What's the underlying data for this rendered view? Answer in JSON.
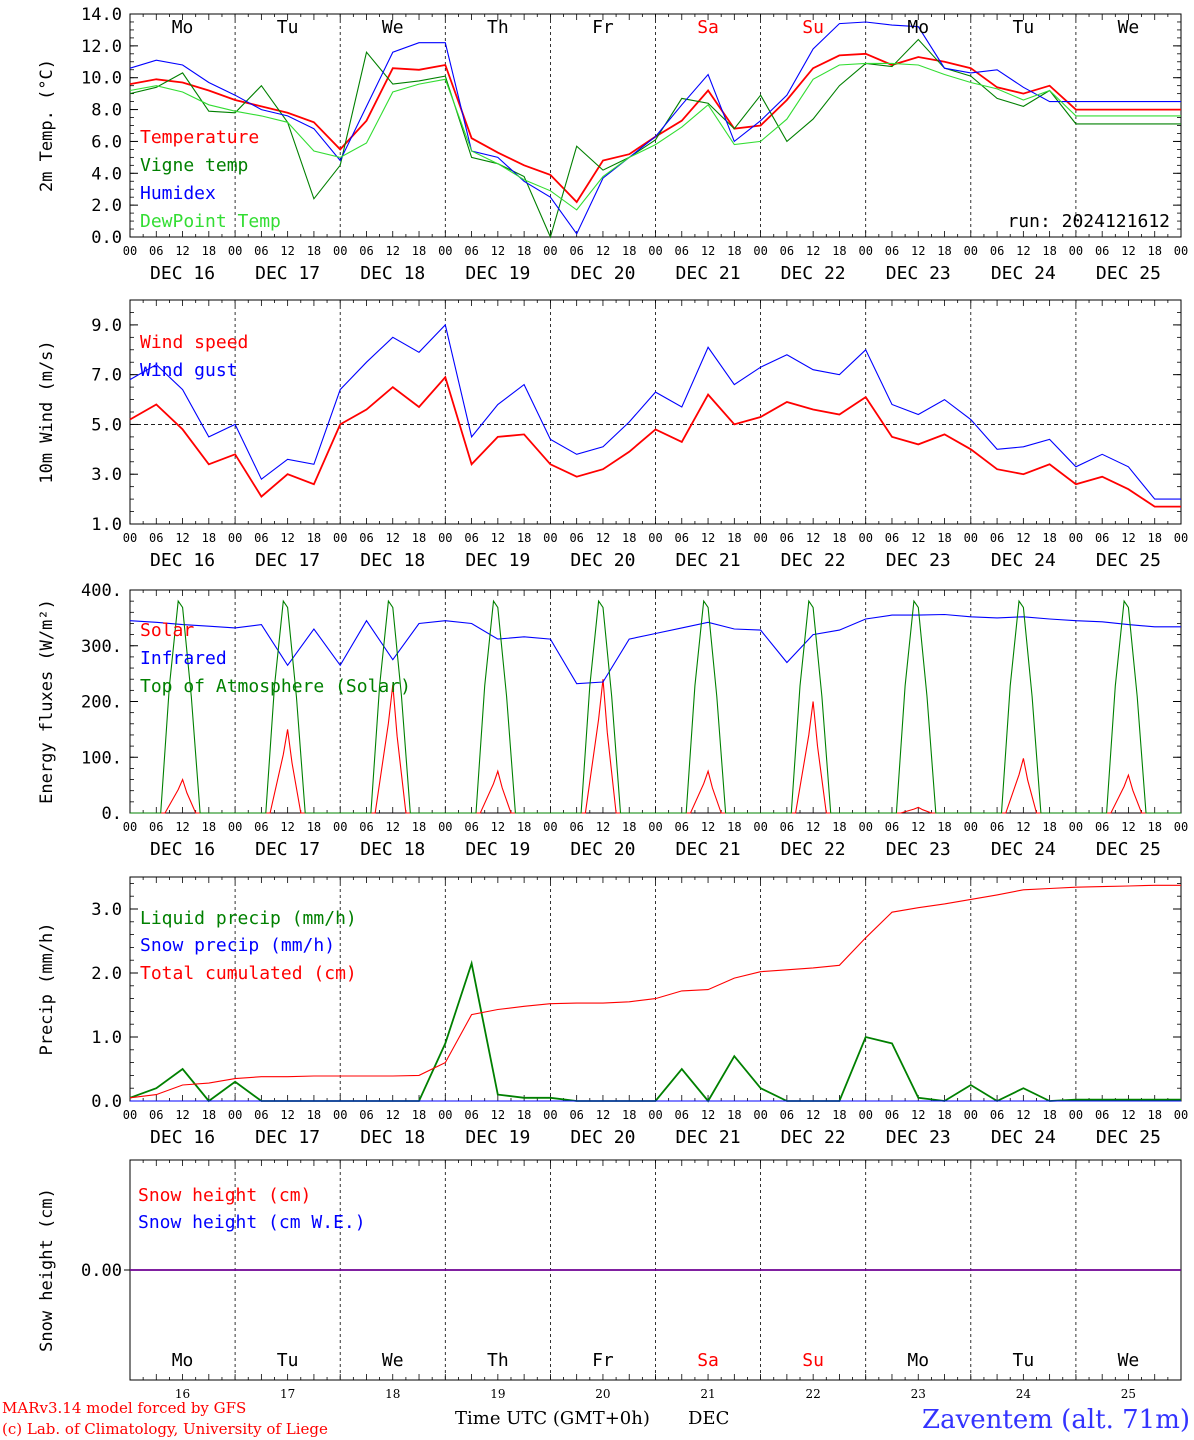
{
  "run_label": "run: 2024121612",
  "footer": {
    "credit_line1": "MARv3.14 model forced by GFS",
    "credit_line2": "(c) Lab. of Climatology, University of Liege",
    "time_axis_label": "Time UTC (GMT+0h)",
    "month_label": "DEC",
    "station": "Zaventem (alt. 71m)"
  },
  "days": [
    {
      "name": "Mo",
      "date": "DEC 16",
      "num": "16",
      "color": "#000000"
    },
    {
      "name": "Tu",
      "date": "DEC 17",
      "num": "17",
      "color": "#000000"
    },
    {
      "name": "We",
      "date": "DEC 18",
      "num": "18",
      "color": "#000000"
    },
    {
      "name": "Th",
      "date": "DEC 19",
      "num": "19",
      "color": "#000000"
    },
    {
      "name": "Fr",
      "date": "DEC 20",
      "num": "20",
      "color": "#000000"
    },
    {
      "name": "Sa",
      "date": "DEC 21",
      "num": "21",
      "color": "#ff0000"
    },
    {
      "name": "Su",
      "date": "DEC 22",
      "num": "22",
      "color": "#ff0000"
    },
    {
      "name": "Mo",
      "date": "DEC 23",
      "num": "23",
      "color": "#000000"
    },
    {
      "name": "Tu",
      "date": "DEC 24",
      "num": "24",
      "color": "#000000"
    },
    {
      "name": "We",
      "date": "DEC 25",
      "num": "25",
      "color": "#000000"
    }
  ],
  "hour_labels": [
    "00",
    "06",
    "12",
    "18"
  ],
  "colors": {
    "red": "#ff0000",
    "green": "#008000",
    "blue": "#0000ff",
    "lightgreen": "#33dd33"
  },
  "chart_data": [
    {
      "type": "line",
      "id": "temp",
      "ylabel": "2m Temp. (°C)",
      "ylim": [
        0,
        14
      ],
      "yticks": [
        "0.0",
        "2.0",
        "4.0",
        "6.0",
        "8.0",
        "10.0",
        "12.0",
        "14.0"
      ],
      "x_unit": "hours since DEC 16 00 UTC",
      "series": [
        {
          "name": "Temperature",
          "color": "#ff0000",
          "x": [
            0,
            6,
            12,
            18,
            24,
            30,
            36,
            42,
            48,
            54,
            60,
            66,
            72,
            78,
            84,
            90,
            96,
            102,
            108,
            114,
            120,
            126,
            132,
            138,
            144,
            150,
            156,
            162,
            168,
            174,
            180,
            186,
            192,
            198,
            204,
            210,
            216,
            222,
            228,
            234,
            240
          ],
          "y": [
            9.6,
            9.9,
            9.7,
            9.2,
            8.6,
            8.2,
            7.8,
            7.2,
            5.5,
            7.3,
            10.6,
            10.5,
            10.8,
            6.2,
            5.3,
            4.5,
            3.9,
            2.2,
            4.8,
            5.2,
            6.3,
            7.3,
            9.2,
            6.8,
            7.0,
            8.6,
            10.6,
            11.4,
            11.5,
            10.8,
            11.3,
            11.0,
            10.6,
            9.4,
            9.0,
            9.5,
            8.0,
            8.0,
            8.0,
            8.0,
            8.0
          ]
        },
        {
          "name": "Vigne temp",
          "color": "#008000",
          "x": [
            0,
            6,
            12,
            18,
            24,
            30,
            36,
            42,
            48,
            54,
            60,
            66,
            72,
            78,
            84,
            90,
            96,
            102,
            108,
            114,
            120,
            126,
            132,
            138,
            144,
            150,
            156,
            162,
            168,
            174,
            180,
            186,
            192,
            198,
            204,
            210,
            216,
            222,
            228,
            234,
            240
          ],
          "y": [
            9.0,
            9.4,
            10.3,
            7.9,
            7.8,
            9.5,
            7.2,
            2.4,
            4.5,
            11.6,
            9.6,
            9.8,
            10.1,
            5.0,
            4.6,
            3.8,
            0.0,
            5.7,
            4.2,
            5.0,
            6.1,
            8.7,
            8.4,
            6.8,
            8.9,
            6.0,
            7.4,
            9.5,
            10.9,
            10.7,
            12.4,
            10.6,
            10.1,
            8.7,
            8.2,
            9.2,
            7.1,
            7.1,
            7.1,
            7.1,
            7.1
          ]
        },
        {
          "name": "Humidex",
          "color": "#0000ff",
          "x": [
            0,
            6,
            12,
            18,
            24,
            30,
            36,
            42,
            48,
            54,
            60,
            66,
            72,
            78,
            84,
            90,
            96,
            102,
            108,
            114,
            120,
            126,
            132,
            138,
            144,
            150,
            156,
            162,
            168,
            174,
            180,
            186,
            192,
            198,
            204,
            210,
            216,
            222,
            228,
            234,
            240
          ],
          "y": [
            10.6,
            11.1,
            10.8,
            9.7,
            8.9,
            8.0,
            7.6,
            6.8,
            4.8,
            8.2,
            11.6,
            12.2,
            12.2,
            5.4,
            5.0,
            3.5,
            2.5,
            0.2,
            3.7,
            5.0,
            6.3,
            8.3,
            10.2,
            6.0,
            7.3,
            8.9,
            11.8,
            13.4,
            13.5,
            13.3,
            13.2,
            10.6,
            10.3,
            10.5,
            9.4,
            8.5,
            8.5,
            8.5,
            8.5,
            8.5,
            8.5
          ]
        },
        {
          "name": "DewPoint Temp",
          "color": "#33dd33",
          "x": [
            0,
            6,
            12,
            18,
            24,
            30,
            36,
            42,
            48,
            54,
            60,
            66,
            72,
            78,
            84,
            90,
            96,
            102,
            108,
            114,
            120,
            126,
            132,
            138,
            144,
            150,
            156,
            162,
            168,
            174,
            180,
            186,
            192,
            198,
            204,
            210,
            216,
            222,
            228,
            234,
            240
          ],
          "y": [
            9.2,
            9.5,
            9.1,
            8.3,
            7.9,
            7.6,
            7.2,
            5.4,
            5.0,
            5.9,
            9.1,
            9.6,
            9.9,
            5.4,
            4.6,
            3.6,
            2.9,
            1.7,
            3.8,
            5.0,
            5.8,
            6.9,
            8.3,
            5.8,
            6.0,
            7.4,
            9.9,
            10.8,
            10.9,
            10.9,
            10.8,
            10.2,
            9.7,
            9.3,
            8.6,
            9.2,
            7.6,
            7.6,
            7.6,
            7.6,
            7.6
          ]
        }
      ]
    },
    {
      "type": "line",
      "id": "wind",
      "ylabel": "10m Wind (m/s)",
      "ylim": [
        1,
        10
      ],
      "yticks": [
        "1.0",
        "3.0",
        "5.0",
        "7.0",
        "9.0"
      ],
      "reference_line": 5.0,
      "series": [
        {
          "name": "Wind speed",
          "color": "#ff0000",
          "x": [
            0,
            6,
            12,
            18,
            24,
            30,
            36,
            42,
            48,
            54,
            60,
            66,
            72,
            78,
            84,
            90,
            96,
            102,
            108,
            114,
            120,
            126,
            132,
            138,
            144,
            150,
            156,
            162,
            168,
            174,
            180,
            186,
            192,
            198,
            204,
            210,
            216,
            222,
            228,
            234,
            240
          ],
          "y": [
            5.2,
            5.8,
            4.8,
            3.4,
            3.8,
            2.1,
            3.0,
            2.6,
            5.0,
            5.6,
            6.5,
            5.7,
            6.9,
            3.4,
            4.5,
            4.6,
            3.4,
            2.9,
            3.2,
            3.9,
            4.8,
            4.3,
            6.2,
            5.0,
            5.3,
            5.9,
            5.6,
            5.4,
            6.1,
            4.5,
            4.2,
            4.6,
            4.0,
            3.2,
            3.0,
            3.4,
            2.6,
            2.9,
            2.4,
            1.7,
            1.7
          ]
        },
        {
          "name": "Wind gust",
          "color": "#0000ff",
          "x": [
            0,
            6,
            12,
            18,
            24,
            30,
            36,
            42,
            48,
            54,
            60,
            66,
            72,
            78,
            84,
            90,
            96,
            102,
            108,
            114,
            120,
            126,
            132,
            138,
            144,
            150,
            156,
            162,
            168,
            174,
            180,
            186,
            192,
            198,
            204,
            210,
            216,
            222,
            228,
            234,
            240
          ],
          "y": [
            6.8,
            7.4,
            6.4,
            4.5,
            5.0,
            2.8,
            3.6,
            3.4,
            6.4,
            7.5,
            8.5,
            7.9,
            9.0,
            4.5,
            5.8,
            6.6,
            4.4,
            3.8,
            4.1,
            5.1,
            6.3,
            5.7,
            8.1,
            6.6,
            7.3,
            7.8,
            7.2,
            7.0,
            8.0,
            5.8,
            5.4,
            6.0,
            5.2,
            4.0,
            4.1,
            4.4,
            3.3,
            3.8,
            3.3,
            2.0,
            2.0
          ]
        }
      ]
    },
    {
      "type": "line",
      "id": "energy",
      "ylabel": "Energy fluxes (W/m²)",
      "ylim": [
        0,
        400
      ],
      "yticks": [
        "0.",
        "100.",
        "200.",
        "300.",
        "400."
      ],
      "series": [
        {
          "name": "Solar",
          "color": "#ff0000",
          "daily_peaks": [
            60,
            150,
            230,
            75,
            240,
            75,
            200,
            10,
            98,
            68
          ]
        },
        {
          "name": "Infrared",
          "color": "#0000ff",
          "x": [
            0,
            6,
            12,
            18,
            24,
            30,
            36,
            42,
            48,
            54,
            60,
            66,
            72,
            78,
            84,
            90,
            96,
            102,
            108,
            114,
            120,
            126,
            132,
            138,
            144,
            150,
            156,
            162,
            168,
            174,
            180,
            186,
            192,
            198,
            204,
            210,
            216,
            222,
            228,
            234,
            240
          ],
          "y": [
            345,
            342,
            338,
            335,
            332,
            338,
            265,
            330,
            265,
            345,
            275,
            340,
            345,
            340,
            312,
            316,
            312,
            232,
            235,
            312,
            322,
            332,
            342,
            330,
            328,
            270,
            320,
            328,
            348,
            355,
            355,
            356,
            352,
            350,
            352,
            348,
            345,
            343,
            338,
            334,
            334
          ]
        },
        {
          "name": "Top of Atmosphere (Solar)",
          "color": "#008000",
          "daily_peak": 380
        }
      ]
    },
    {
      "type": "line",
      "id": "precip",
      "ylabel": "Precip (mm/h)",
      "ylim": [
        0,
        3.5
      ],
      "yticks": [
        "0.0",
        "1.0",
        "2.0",
        "3.0"
      ],
      "series": [
        {
          "name": "Liquid precip (mm/h)",
          "color": "#008000",
          "x": [
            0,
            6,
            12,
            18,
            24,
            30,
            36,
            42,
            48,
            54,
            60,
            66,
            72,
            78,
            84,
            90,
            96,
            102,
            108,
            114,
            120,
            126,
            132,
            138,
            144,
            150,
            156,
            162,
            168,
            174,
            180,
            186,
            192,
            198,
            204,
            210,
            216,
            222,
            228,
            234,
            240
          ],
          "y": [
            0.05,
            0.2,
            0.5,
            0.0,
            0.3,
            0.0,
            0.0,
            0.0,
            0.0,
            0.0,
            0.0,
            0.0,
            0.9,
            2.15,
            0.1,
            0.05,
            0.05,
            0.0,
            0.0,
            0.0,
            0.0,
            0.5,
            0.0,
            0.7,
            0.2,
            0.0,
            0.0,
            0.0,
            1.0,
            0.9,
            0.05,
            0.0,
            0.25,
            0.0,
            0.2,
            0.0,
            0.02,
            0.02,
            0.02,
            0.02,
            0.02
          ]
        },
        {
          "name": "Snow precip (mm/h)",
          "color": "#0000ff",
          "x": [
            0,
            240
          ],
          "y": [
            0.0,
            0.0
          ]
        },
        {
          "name": "Total cumulated (cm)",
          "color": "#ff0000",
          "x": [
            0,
            6,
            12,
            18,
            24,
            30,
            36,
            42,
            48,
            54,
            60,
            66,
            72,
            78,
            84,
            90,
            96,
            102,
            108,
            114,
            120,
            126,
            132,
            138,
            144,
            150,
            156,
            162,
            168,
            174,
            180,
            186,
            192,
            198,
            204,
            210,
            216,
            222,
            228,
            234,
            240
          ],
          "y": [
            0.05,
            0.1,
            0.25,
            0.28,
            0.35,
            0.38,
            0.38,
            0.39,
            0.39,
            0.39,
            0.39,
            0.4,
            0.6,
            1.35,
            1.43,
            1.48,
            1.52,
            1.53,
            1.53,
            1.55,
            1.6,
            1.72,
            1.74,
            1.92,
            2.02,
            2.05,
            2.08,
            2.12,
            2.55,
            2.95,
            3.02,
            3.08,
            3.15,
            3.22,
            3.3,
            3.32,
            3.34,
            3.35,
            3.36,
            3.37,
            3.37
          ]
        }
      ]
    },
    {
      "type": "line",
      "id": "snow",
      "ylabel": "Snow height (cm)",
      "yticks": [
        "0.00"
      ],
      "series": [
        {
          "name": "Snow height (cm)",
          "color": "#ff0000",
          "x": [
            0,
            240
          ],
          "y": [
            0.0,
            0.0
          ]
        },
        {
          "name": "Snow height (cm W.E.)",
          "color": "#0000ff",
          "x": [
            0,
            240
          ],
          "y": [
            0.0,
            0.0
          ]
        }
      ]
    }
  ]
}
